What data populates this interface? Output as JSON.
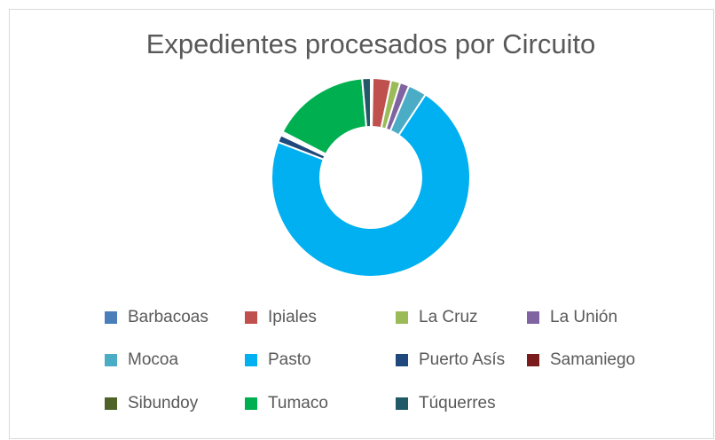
{
  "chart_data": {
    "type": "donut",
    "title": "Expedientes procesados por Circuito",
    "categories": [
      "Barbacoas",
      "Ipiales",
      "La Cruz",
      "La Unión",
      "Mocoa",
      "Pasto",
      "Puerto Asís",
      "Samaniego",
      "Sibundoy",
      "Tumaco",
      "Túquerres"
    ],
    "values": [
      0.3,
      3,
      1.5,
      1.5,
      3,
      71.5,
      1.2,
      0.3,
      0.3,
      16,
      1.4
    ],
    "colors": [
      "#4a7ebb",
      "#c0504d",
      "#9bbb59",
      "#8064a2",
      "#4bacc6",
      "#00b0f0",
      "#1f497d",
      "#7b1c1c",
      "#4f6228",
      "#00b050",
      "#215968"
    ],
    "legend": "bottom"
  }
}
